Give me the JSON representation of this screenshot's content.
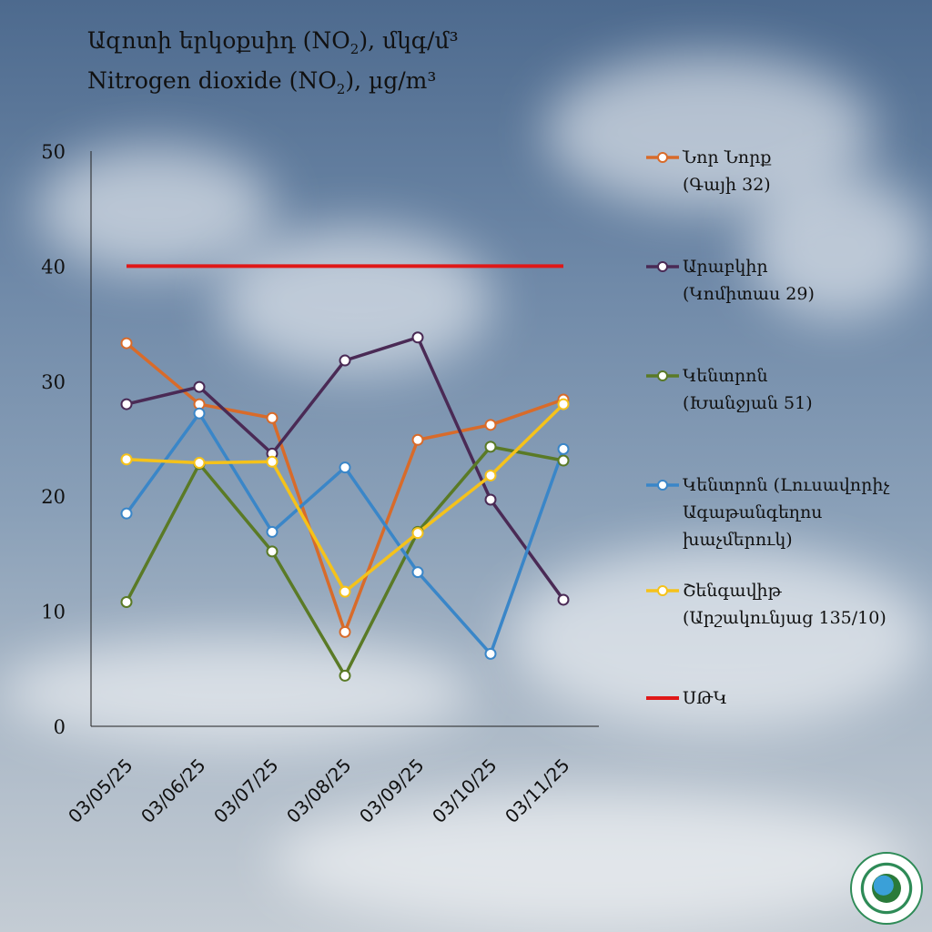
{
  "title": {
    "line1_am": "Ազոտի  երկօքսիդ (NO",
    "line1_sub": "2",
    "line1_am_end": "), մկգ/մ³",
    "line2_en": "Nitrogen  dioxide (NO",
    "line2_sub": "2",
    "line2_en_end": "), µg/m³"
  },
  "chart_data": {
    "type": "line",
    "categories": [
      "03/05/25",
      "03/06/25",
      "03/07/25",
      "03/08/25",
      "03/09/25",
      "03/10/25",
      "03/11/25"
    ],
    "ylim": [
      0,
      50
    ],
    "yticks": [
      "0",
      "10",
      "20",
      "30",
      "40",
      "50"
    ],
    "series": [
      {
        "name": "Նոր Նորք (Գայի 32)",
        "color": "#d86b2a",
        "values": [
          33.3,
          28.0,
          26.8,
          8.2,
          24.9,
          26.2,
          28.4
        ]
      },
      {
        "name": "Արաբկիր (Կոմիտաս 29)",
        "color": "#4a2a55",
        "values": [
          28.0,
          29.5,
          23.7,
          31.8,
          33.8,
          19.7,
          11.0
        ]
      },
      {
        "name": "Կենտրոն (Խանջյան 51)",
        "color": "#5a7a26",
        "values": [
          10.8,
          22.8,
          15.2,
          4.4,
          16.9,
          24.3,
          23.1
        ]
      },
      {
        "name": "Կենտրոն (Լուսավորիչ Ագաթանգեղոս խաչմերուկ)",
        "color": "#3a86c8",
        "values": [
          18.5,
          27.2,
          16.9,
          22.5,
          13.4,
          6.3,
          24.1
        ]
      },
      {
        "name": "Շենգավիթ (Արշակունյաց 135/10)",
        "color": "#f5c21a",
        "values": [
          23.2,
          22.9,
          23.0,
          11.7,
          16.8,
          21.8,
          28.0
        ]
      }
    ],
    "limit": {
      "name": "ՍԹԿ",
      "value": 40,
      "color": "#e01818"
    }
  },
  "legend": [
    {
      "line1": "Նոր Նորք",
      "line2": "(Գայի 32)",
      "line3": "",
      "color": "#d86b2a",
      "marker": true
    },
    {
      "line1": "Արաբկիր",
      "line2": "(Կոմիտաս 29)",
      "line3": "",
      "color": "#4a2a55",
      "marker": true
    },
    {
      "line1": "Կենտրոն",
      "line2": "(Խանջյան 51)",
      "line3": "",
      "color": "#5a7a26",
      "marker": true
    },
    {
      "line1": "Կենտրոն (Լուսավորիչ",
      "line2": "Ագաթանգեղոս",
      "line3": "խաչմերուկ)",
      "color": "#3a86c8",
      "marker": true
    },
    {
      "line1": "Շենգավիթ",
      "line2": "(Արշակունյաց 135/10)",
      "line3": "",
      "color": "#f5c21a",
      "marker": true
    },
    {
      "line1": "ՍԹԿ",
      "line2": "",
      "line3": "",
      "color": "#e01818",
      "marker": false
    }
  ]
}
